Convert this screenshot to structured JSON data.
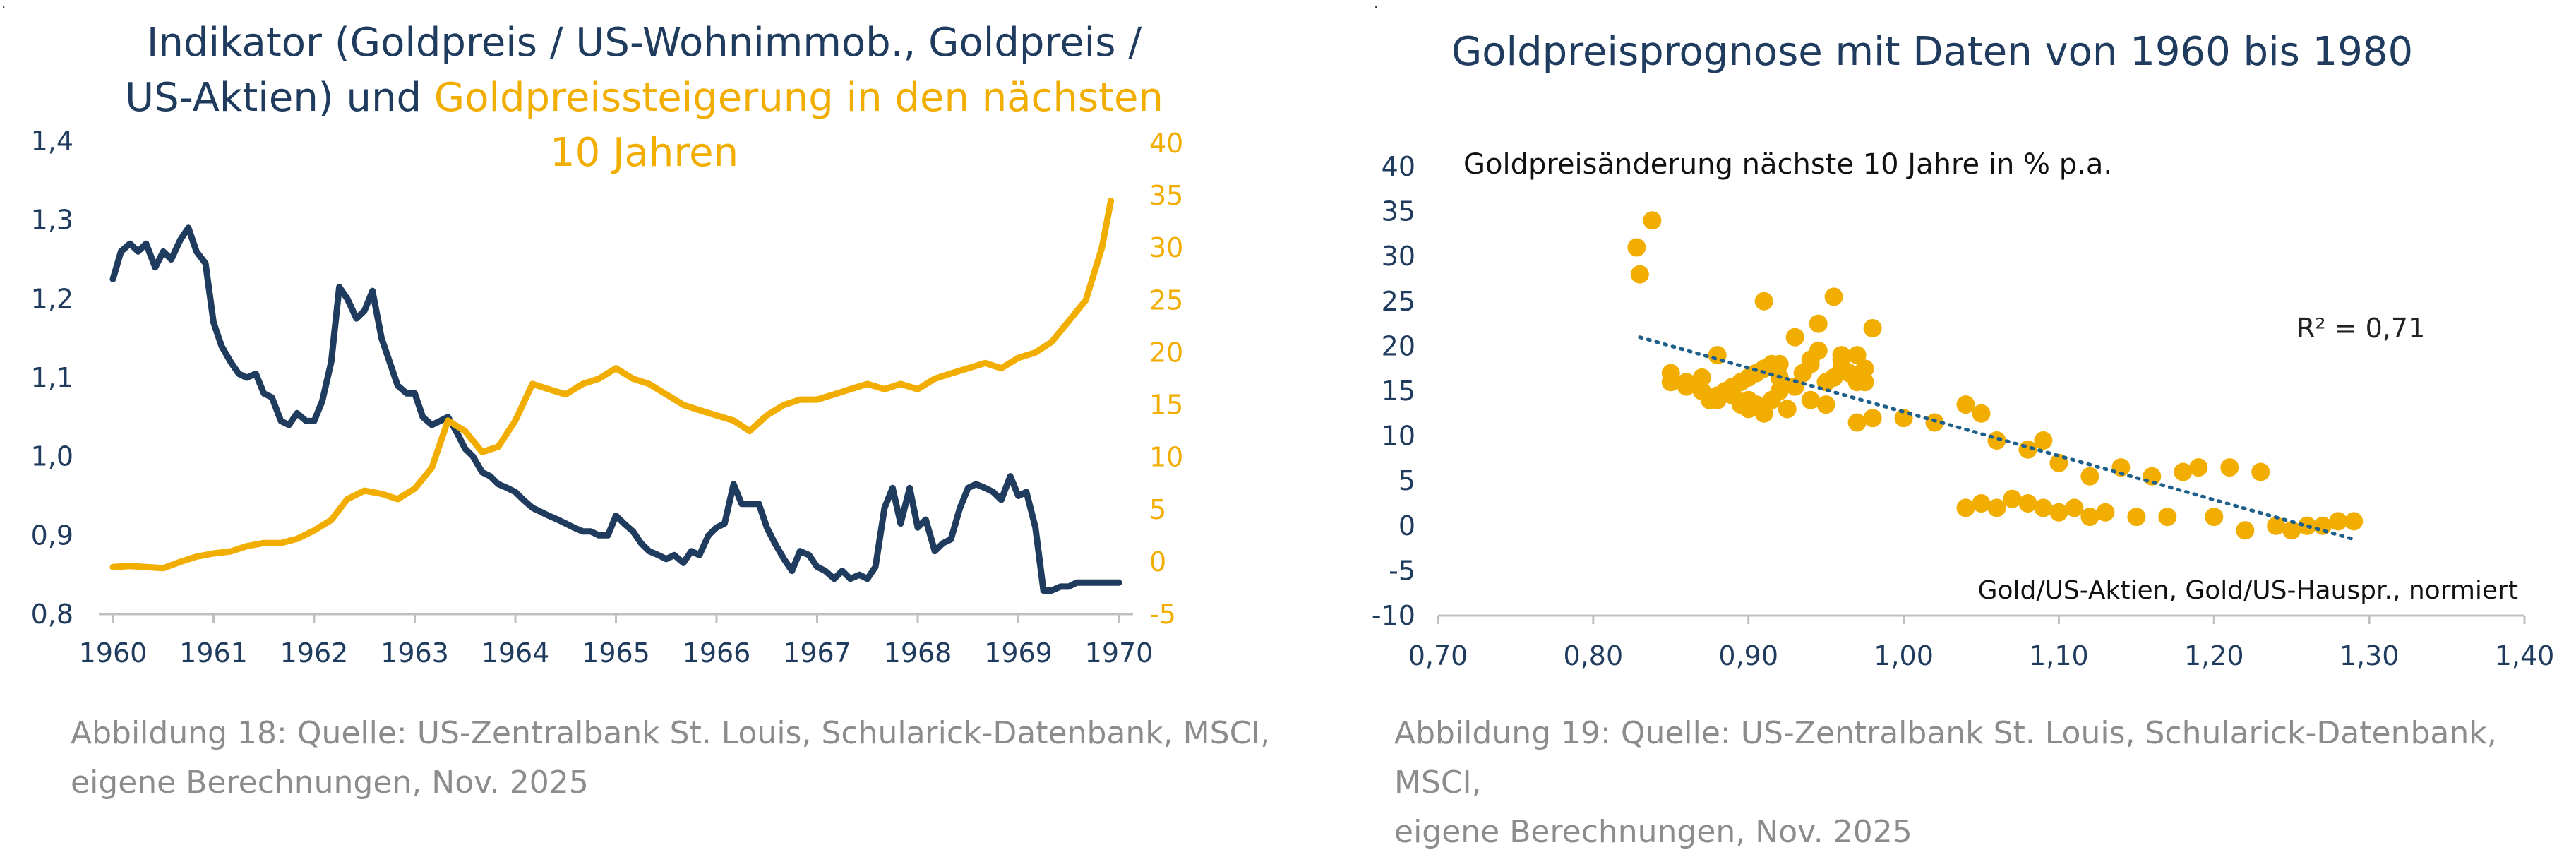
{
  "left": {
    "title_line1": "Indikator (Goldpreis / US-Wohnimmob., Goldpreis /",
    "title_line2_navy": "US-Aktien) und",
    "title_line2_gold": "Goldpreissteigerung in den nächsten",
    "title_line3_gold": "10 Jahren",
    "caption_line1": "Abbildung 18: Quelle: US-Zentralbank St. Louis, Schularick-Datenbank, MSCI,",
    "caption_line2": "eigene Berechnungen, Nov. 2025"
  },
  "right": {
    "title": "Goldpreisprognose mit Daten von 1960 bis 1980",
    "caption_line1": "Abbildung 19: Quelle: US-Zentralbank St. Louis, Schularick-Datenbank, MSCI,",
    "caption_line2": "eigene Berechnungen, Nov. 2025"
  },
  "colors": {
    "navy": "#1f3b5e",
    "gold": "#f2ae00",
    "trend": "#1f5f8b",
    "axis": "#bfbfbf"
  },
  "chart_data": [
    {
      "type": "line",
      "xlim": [
        1960,
        1970
      ],
      "x_ticks": [
        "1960",
        "1961",
        "1962",
        "1963",
        "1964",
        "1965",
        "1966",
        "1967",
        "1968",
        "1969",
        "1970"
      ],
      "y_left_ticks": [
        "1,4",
        "1,3",
        "1,2",
        "1,1",
        "1,0",
        "0,9",
        "0,8"
      ],
      "y_left_lim": [
        0.8,
        1.4
      ],
      "y_right_ticks": [
        "40",
        "35",
        "30",
        "25",
        "20",
        "15",
        "10",
        "5",
        "0",
        "-5"
      ],
      "y_right_lim": [
        -5,
        40
      ],
      "grid": false,
      "series": [
        {
          "axis": "left",
          "color": "#1f3b5e",
          "x": [
            1960.0,
            1960.08,
            1960.17,
            1960.25,
            1960.33,
            1960.42,
            1960.5,
            1960.58,
            1960.67,
            1960.75,
            1960.83,
            1960.92,
            1961.0,
            1961.08,
            1961.17,
            1961.25,
            1961.33,
            1961.42,
            1961.5,
            1961.58,
            1961.67,
            1961.75,
            1961.83,
            1961.92,
            1962.0,
            1962.08,
            1962.17,
            1962.25,
            1962.33,
            1962.42,
            1962.5,
            1962.58,
            1962.67,
            1962.75,
            1962.83,
            1962.92,
            1963.0,
            1963.08,
            1963.17,
            1963.25,
            1963.33,
            1963.42,
            1963.5,
            1963.58,
            1963.67,
            1963.75,
            1963.83,
            1963.92,
            1964.0,
            1964.08,
            1964.17,
            1964.25,
            1964.33,
            1964.42,
            1964.5,
            1964.58,
            1964.67,
            1964.75,
            1964.83,
            1964.92,
            1965.0,
            1965.08,
            1965.17,
            1965.25,
            1965.33,
            1965.42,
            1965.5,
            1965.58,
            1965.67,
            1965.75,
            1965.83,
            1965.92,
            1966.0,
            1966.08,
            1966.17,
            1966.25,
            1966.33,
            1966.42,
            1966.5,
            1966.58,
            1966.67,
            1966.75,
            1966.83,
            1966.92,
            1967.0,
            1967.08,
            1967.17,
            1967.25,
            1967.33,
            1967.42,
            1967.5,
            1967.58,
            1967.67,
            1967.75,
            1967.83,
            1967.92,
            1968.0,
            1968.08,
            1968.17,
            1968.25,
            1968.33,
            1968.42,
            1968.5,
            1968.58,
            1968.67,
            1968.75,
            1968.83,
            1968.92,
            1969.0,
            1969.08,
            1969.17,
            1969.25,
            1969.33,
            1969.42,
            1969.5,
            1969.58,
            1969.67,
            1969.75,
            1969.83,
            1969.92,
            1970.0
          ],
          "values": [
            1.225,
            1.26,
            1.27,
            1.26,
            1.27,
            1.24,
            1.26,
            1.25,
            1.275,
            1.29,
            1.26,
            1.245,
            1.17,
            1.14,
            1.12,
            1.105,
            1.1,
            1.105,
            1.08,
            1.075,
            1.045,
            1.04,
            1.055,
            1.045,
            1.045,
            1.07,
            1.12,
            1.215,
            1.2,
            1.175,
            1.185,
            1.21,
            1.15,
            1.12,
            1.09,
            1.08,
            1.08,
            1.05,
            1.04,
            1.045,
            1.05,
            1.03,
            1.01,
            1.0,
            0.98,
            0.975,
            0.965,
            0.96,
            0.955,
            0.945,
            0.935,
            0.93,
            0.925,
            0.92,
            0.915,
            0.91,
            0.905,
            0.905,
            0.9,
            0.9,
            0.925,
            0.915,
            0.905,
            0.89,
            0.88,
            0.875,
            0.87,
            0.875,
            0.865,
            0.88,
            0.875,
            0.9,
            0.91,
            0.915,
            0.965,
            0.94,
            0.94,
            0.94,
            0.91,
            0.89,
            0.87,
            0.855,
            0.88,
            0.875,
            0.86,
            0.855,
            0.845,
            0.855,
            0.845,
            0.85,
            0.845,
            0.86,
            0.935,
            0.96,
            0.915,
            0.96,
            0.91,
            0.92,
            0.88,
            0.89,
            0.895,
            0.935,
            0.96,
            0.965,
            0.96,
            0.955,
            0.945,
            0.975,
            0.95,
            0.955,
            0.91,
            0.83,
            0.83,
            0.835,
            0.835,
            0.84,
            0.84,
            0.84,
            0.84,
            0.84,
            0.84
          ],
          "name": ""
        },
        {
          "axis": "right",
          "color": "#f2ae00",
          "x": [
            1960.0,
            1960.17,
            1960.33,
            1960.5,
            1960.67,
            1960.83,
            1961.0,
            1961.17,
            1961.33,
            1961.5,
            1961.67,
            1961.83,
            1962.0,
            1962.17,
            1962.33,
            1962.5,
            1962.67,
            1962.83,
            1963.0,
            1963.17,
            1963.33,
            1963.5,
            1963.67,
            1963.83,
            1964.0,
            1964.17,
            1964.33,
            1964.5,
            1964.67,
            1964.83,
            1965.0,
            1965.17,
            1965.33,
            1965.5,
            1965.67,
            1965.83,
            1966.0,
            1966.17,
            1966.33,
            1966.5,
            1966.67,
            1966.83,
            1967.0,
            1967.17,
            1967.33,
            1967.5,
            1967.67,
            1967.83,
            1968.0,
            1968.17,
            1968.33,
            1968.5,
            1968.67,
            1968.83,
            1969.0,
            1969.17,
            1969.33,
            1969.5,
            1969.67,
            1969.83,
            1969.92
          ],
          "values": [
            -0.5,
            -0.4,
            -0.5,
            -0.6,
            0.0,
            0.5,
            0.8,
            1.0,
            1.5,
            1.8,
            1.8,
            2.2,
            3.0,
            4.0,
            6.0,
            6.8,
            6.5,
            6.0,
            7.0,
            9.0,
            13.5,
            12.5,
            10.5,
            11.0,
            13.5,
            17.0,
            16.5,
            16.0,
            17.0,
            17.5,
            18.5,
            17.5,
            17.0,
            16.0,
            15.0,
            14.5,
            14.0,
            13.5,
            12.5,
            14.0,
            15.0,
            15.5,
            15.5,
            16.0,
            16.5,
            17.0,
            16.5,
            17.0,
            16.5,
            17.5,
            18.0,
            18.5,
            19.0,
            18.5,
            19.5,
            20.0,
            21.0,
            23.0,
            25.0,
            30.0,
            34.5
          ],
          "name": ""
        }
      ]
    },
    {
      "type": "scatter",
      "title": "Goldpreisprognose mit Daten von 1960 bis 1980",
      "ylabel": "Goldpreisänderung nächste 10 Jahre in % p.a.",
      "xlabel": "Gold/US-Aktien, Gold/US-Hauspr., normiert",
      "annotation": "R² = 0,71",
      "xlim": [
        0.7,
        1.4
      ],
      "ylim": [
        -10,
        40
      ],
      "x_ticks": [
        "0,70",
        "0,80",
        "0,90",
        "1,00",
        "1,10",
        "1,20",
        "1,30",
        "1,40"
      ],
      "y_ticks": [
        "40",
        "35",
        "30",
        "25",
        "20",
        "15",
        "10",
        "5",
        "0",
        "-5",
        "-10"
      ],
      "grid": false,
      "trendline": {
        "x": [
          0.83,
          1.29
        ],
        "y": [
          21.0,
          -1.5
        ]
      },
      "points": {
        "x": [
          0.828,
          0.83,
          0.838,
          0.85,
          0.86,
          0.87,
          0.875,
          0.88,
          0.885,
          0.89,
          0.895,
          0.9,
          0.905,
          0.91,
          0.915,
          0.92,
          0.925,
          0.93,
          0.935,
          0.94,
          0.945,
          0.95,
          0.955,
          0.96,
          0.965,
          0.97,
          0.975,
          0.98,
          0.85,
          0.86,
          0.87,
          0.88,
          0.89,
          0.9,
          0.91,
          0.92,
          0.93,
          0.94,
          0.95,
          0.96,
          0.97,
          0.88,
          0.895,
          0.905,
          0.915,
          0.925,
          0.935,
          0.945,
          0.955,
          0.965,
          0.975,
          0.9,
          0.91,
          0.92,
          0.93,
          0.94,
          0.95,
          0.96,
          0.97,
          0.98,
          1.0,
          1.02,
          1.04,
          1.05,
          1.06,
          1.08,
          1.09,
          1.1,
          1.12,
          1.14,
          1.16,
          1.18,
          1.19,
          1.21,
          1.23,
          1.04,
          1.05,
          1.06,
          1.07,
          1.08,
          1.09,
          1.1,
          1.11,
          1.12,
          1.13,
          1.15,
          1.17,
          1.2,
          1.22,
          1.25,
          1.26,
          1.27,
          1.28,
          1.29,
          1.24,
          1.25,
          1.26
        ],
        "y": [
          31.0,
          28.0,
          34.0,
          17.0,
          16.0,
          15.0,
          14.0,
          19.0,
          15.0,
          14.5,
          13.5,
          14.0,
          13.5,
          25.0,
          14.0,
          18.0,
          13.0,
          21.0,
          17.0,
          18.5,
          22.5,
          16.0,
          25.5,
          18.5,
          17.0,
          19.0,
          17.5,
          22.0,
          16.0,
          15.5,
          16.5,
          14.0,
          15.5,
          16.5,
          17.5,
          16.5,
          15.5,
          18.0,
          16.0,
          19.0,
          16.0,
          14.5,
          16.0,
          17.0,
          18.0,
          13.0,
          17.0,
          19.5,
          16.5,
          17.0,
          16.0,
          13.0,
          12.5,
          15.0,
          15.5,
          14.0,
          13.5,
          17.5,
          11.5,
          12.0,
          12.0,
          11.5,
          13.5,
          12.5,
          9.5,
          8.5,
          9.5,
          7.0,
          5.5,
          6.5,
          5.5,
          6.0,
          6.5,
          6.5,
          6.0,
          2.0,
          2.5,
          2.0,
          3.0,
          2.5,
          2.0,
          1.5,
          2.0,
          1.0,
          1.5,
          1.0,
          1.0,
          1.0,
          -0.5,
          -0.5,
          0.0,
          0.0,
          0.5,
          0.5,
          0.0,
          -0.5,
          0.0
        ]
      }
    }
  ]
}
